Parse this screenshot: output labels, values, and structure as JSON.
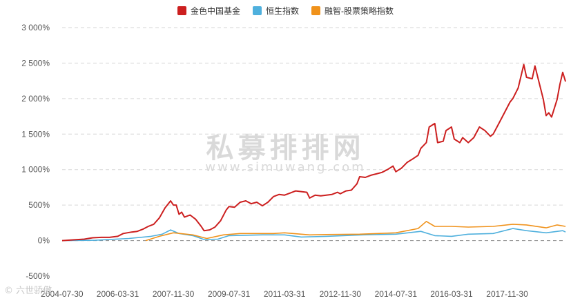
{
  "legend": [
    {
      "label": "金色中国基金",
      "color": "#cc1f1f"
    },
    {
      "label": "恒生指数",
      "color": "#4fb0dd"
    },
    {
      "label": "融智-股票策略指数",
      "color": "#f0921b"
    }
  ],
  "watermark": {
    "title": "私募排排网",
    "url": "www.simuwang.com"
  },
  "corner_logo": "© 六世骄傲",
  "chart_data": {
    "type": "line",
    "y_ticks": [
      -500,
      0,
      500,
      1000,
      1500,
      2000,
      2500,
      3000
    ],
    "y_tick_labels": [
      "-500%",
      "0%",
      "500%",
      "1 000%",
      "1 500%",
      "2 000%",
      "2 500%",
      "3 000%"
    ],
    "ylim": [
      -500,
      3000
    ],
    "xlim": [
      "2004-07-31",
      "2019-07-31"
    ],
    "x_ticks": [
      "2004-07-30",
      "2006-03-31",
      "2007-11-30",
      "2009-07-31",
      "2011-03-31",
      "2012-11-30",
      "2014-07-31",
      "2016-03-31",
      "2017-11-30"
    ],
    "grid": true,
    "legend_position": "top",
    "series": [
      {
        "name": "金色中国基金",
        "color": "#cc1f1f",
        "points": [
          [
            "2004-07-31",
            0
          ],
          [
            "2004-11-30",
            10
          ],
          [
            "2005-03-31",
            20
          ],
          [
            "2005-06-30",
            40
          ],
          [
            "2005-09-30",
            45
          ],
          [
            "2005-12-31",
            45
          ],
          [
            "2006-03-31",
            60
          ],
          [
            "2006-05-31",
            100
          ],
          [
            "2006-08-31",
            120
          ],
          [
            "2006-10-31",
            130
          ],
          [
            "2006-12-31",
            160
          ],
          [
            "2007-02-28",
            200
          ],
          [
            "2007-04-30",
            230
          ],
          [
            "2007-06-30",
            320
          ],
          [
            "2007-08-31",
            460
          ],
          [
            "2007-10-31",
            560
          ],
          [
            "2007-11-30",
            500
          ],
          [
            "2007-12-31",
            500
          ],
          [
            "2008-01-31",
            370
          ],
          [
            "2008-02-29",
            400
          ],
          [
            "2008-03-31",
            330
          ],
          [
            "2008-05-31",
            360
          ],
          [
            "2008-07-31",
            300
          ],
          [
            "2008-09-30",
            200
          ],
          [
            "2008-10-31",
            140
          ],
          [
            "2008-12-31",
            150
          ],
          [
            "2009-02-28",
            190
          ],
          [
            "2009-04-30",
            280
          ],
          [
            "2009-06-30",
            430
          ],
          [
            "2009-07-31",
            480
          ],
          [
            "2009-09-30",
            470
          ],
          [
            "2009-11-30",
            540
          ],
          [
            "2010-01-31",
            560
          ],
          [
            "2010-03-31",
            520
          ],
          [
            "2010-05-31",
            540
          ],
          [
            "2010-07-31",
            490
          ],
          [
            "2010-09-30",
            540
          ],
          [
            "2010-11-30",
            620
          ],
          [
            "2011-01-31",
            650
          ],
          [
            "2011-03-31",
            640
          ],
          [
            "2011-05-31",
            670
          ],
          [
            "2011-07-31",
            700
          ],
          [
            "2011-09-30",
            690
          ],
          [
            "2011-11-30",
            680
          ],
          [
            "2011-12-31",
            600
          ],
          [
            "2012-02-29",
            640
          ],
          [
            "2012-04-30",
            630
          ],
          [
            "2012-06-30",
            640
          ],
          [
            "2012-08-31",
            650
          ],
          [
            "2012-10-31",
            680
          ],
          [
            "2012-11-30",
            660
          ],
          [
            "2013-01-31",
            700
          ],
          [
            "2013-03-31",
            710
          ],
          [
            "2013-05-31",
            800
          ],
          [
            "2013-06-30",
            900
          ],
          [
            "2013-08-31",
            890
          ],
          [
            "2013-10-31",
            920
          ],
          [
            "2013-12-31",
            940
          ],
          [
            "2014-02-28",
            960
          ],
          [
            "2014-04-30",
            1000
          ],
          [
            "2014-06-30",
            1050
          ],
          [
            "2014-07-31",
            970
          ],
          [
            "2014-09-30",
            1020
          ],
          [
            "2014-11-30",
            1100
          ],
          [
            "2015-01-31",
            1150
          ],
          [
            "2015-03-31",
            1200
          ],
          [
            "2015-04-30",
            1300
          ],
          [
            "2015-06-30",
            1380
          ],
          [
            "2015-07-31",
            1600
          ],
          [
            "2015-09-30",
            1650
          ],
          [
            "2015-10-31",
            1380
          ],
          [
            "2015-12-31",
            1400
          ],
          [
            "2016-01-31",
            1550
          ],
          [
            "2016-03-31",
            1600
          ],
          [
            "2016-04-30",
            1430
          ],
          [
            "2016-06-30",
            1380
          ],
          [
            "2016-07-31",
            1450
          ],
          [
            "2016-09-30",
            1380
          ],
          [
            "2016-11-30",
            1450
          ],
          [
            "2017-01-31",
            1600
          ],
          [
            "2017-03-31",
            1550
          ],
          [
            "2017-05-31",
            1470
          ],
          [
            "2017-06-30",
            1500
          ],
          [
            "2017-08-31",
            1650
          ],
          [
            "2017-10-31",
            1800
          ],
          [
            "2017-12-31",
            1950
          ],
          [
            "2018-01-31",
            2000
          ],
          [
            "2018-03-31",
            2150
          ],
          [
            "2018-05-31",
            2480
          ],
          [
            "2018-06-30",
            2300
          ],
          [
            "2018-08-31",
            2280
          ],
          [
            "2018-09-30",
            2460
          ],
          [
            "2018-10-31",
            2300
          ],
          [
            "2018-12-31",
            1990
          ],
          [
            "2019-01-31",
            1760
          ],
          [
            "2019-02-28",
            1800
          ],
          [
            "2019-03-31",
            1740
          ],
          [
            "2019-05-31",
            1990
          ],
          [
            "2019-06-30",
            2200
          ],
          [
            "2019-07-31",
            2370
          ],
          [
            "2019-08-31",
            2240
          ]
        ]
      },
      {
        "name": "恒生指数",
        "color": "#4fb0dd",
        "points": [
          [
            "2004-07-31",
            0
          ],
          [
            "2005-07-31",
            5
          ],
          [
            "2006-07-31",
            30
          ],
          [
            "2007-03-31",
            60
          ],
          [
            "2007-07-31",
            90
          ],
          [
            "2007-10-31",
            150
          ],
          [
            "2008-01-31",
            100
          ],
          [
            "2008-06-30",
            70
          ],
          [
            "2008-10-31",
            15
          ],
          [
            "2009-03-31",
            20
          ],
          [
            "2009-07-31",
            70
          ],
          [
            "2010-07-31",
            80
          ],
          [
            "2011-03-31",
            80
          ],
          [
            "2011-09-30",
            50
          ],
          [
            "2012-06-30",
            60
          ],
          [
            "2013-07-31",
            80
          ],
          [
            "2014-07-31",
            90
          ],
          [
            "2015-04-30",
            130
          ],
          [
            "2015-09-30",
            70
          ],
          [
            "2016-03-31",
            60
          ],
          [
            "2016-09-30",
            90
          ],
          [
            "2017-06-30",
            100
          ],
          [
            "2018-01-31",
            170
          ],
          [
            "2018-06-30",
            140
          ],
          [
            "2019-01-31",
            110
          ],
          [
            "2019-07-31",
            140
          ],
          [
            "2019-08-31",
            120
          ]
        ]
      },
      {
        "name": "融智-股票策略指数",
        "color": "#f0921b",
        "points": [
          [
            "2007-01-31",
            0
          ],
          [
            "2007-06-30",
            60
          ],
          [
            "2007-11-30",
            110
          ],
          [
            "2008-06-30",
            80
          ],
          [
            "2008-11-30",
            30
          ],
          [
            "2009-05-31",
            80
          ],
          [
            "2009-11-30",
            100
          ],
          [
            "2010-11-30",
            100
          ],
          [
            "2011-03-31",
            110
          ],
          [
            "2011-12-31",
            80
          ],
          [
            "2012-06-30",
            85
          ],
          [
            "2013-06-30",
            90
          ],
          [
            "2014-07-31",
            110
          ],
          [
            "2015-03-31",
            170
          ],
          [
            "2015-06-30",
            270
          ],
          [
            "2015-09-30",
            200
          ],
          [
            "2016-03-31",
            200
          ],
          [
            "2016-09-30",
            190
          ],
          [
            "2017-06-30",
            200
          ],
          [
            "2018-01-31",
            230
          ],
          [
            "2018-06-30",
            220
          ],
          [
            "2019-01-31",
            180
          ],
          [
            "2019-05-31",
            220
          ],
          [
            "2019-08-31",
            200
          ]
        ]
      }
    ]
  }
}
